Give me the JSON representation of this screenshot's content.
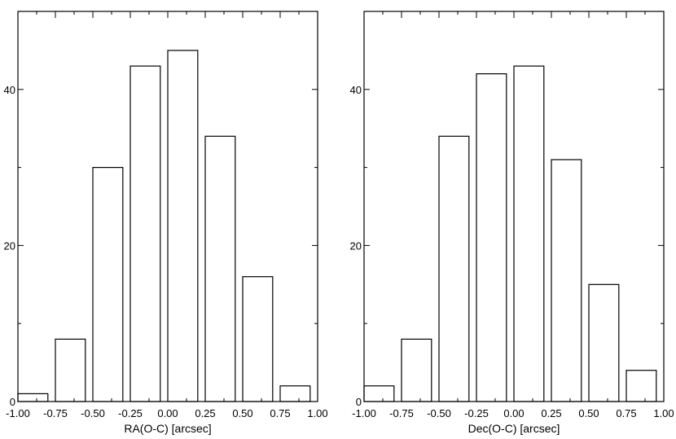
{
  "chart_data": [
    {
      "type": "bar",
      "xlabel": "RA(O-C) [arcsec]",
      "ylabel": "",
      "xlim": [
        -1.0,
        1.0
      ],
      "ylim": [
        0,
        50
      ],
      "x_ticks": [
        "-1.00",
        "-0.75",
        "-0.50",
        "-0.25",
        "0.00",
        "0.25",
        "0.50",
        "0.75",
        "1.00"
      ],
      "y_ticks": [
        "0",
        "20",
        "40"
      ],
      "bin_centers": [
        -0.9,
        -0.65,
        -0.4,
        -0.15,
        0.1,
        0.35,
        0.6,
        0.85
      ],
      "values": [
        1,
        8,
        30,
        43,
        45,
        34,
        16,
        2
      ],
      "bar_width": 0.2,
      "grid": false
    },
    {
      "type": "bar",
      "xlabel": "Dec(O-C) [arcsec]",
      "ylabel": "",
      "xlim": [
        -1.0,
        1.0
      ],
      "ylim": [
        0,
        50
      ],
      "x_ticks": [
        "-1.00",
        "-0.75",
        "-0.50",
        "-0.25",
        "0.00",
        "0.25",
        "0.50",
        "0.75",
        "1.00"
      ],
      "y_ticks": [
        "0",
        "20",
        "40"
      ],
      "bin_centers": [
        -0.9,
        -0.65,
        -0.4,
        -0.15,
        0.1,
        0.35,
        0.6,
        0.85
      ],
      "values": [
        2,
        8,
        34,
        42,
        43,
        31,
        15,
        4
      ],
      "bar_width": 0.2,
      "grid": false
    }
  ]
}
